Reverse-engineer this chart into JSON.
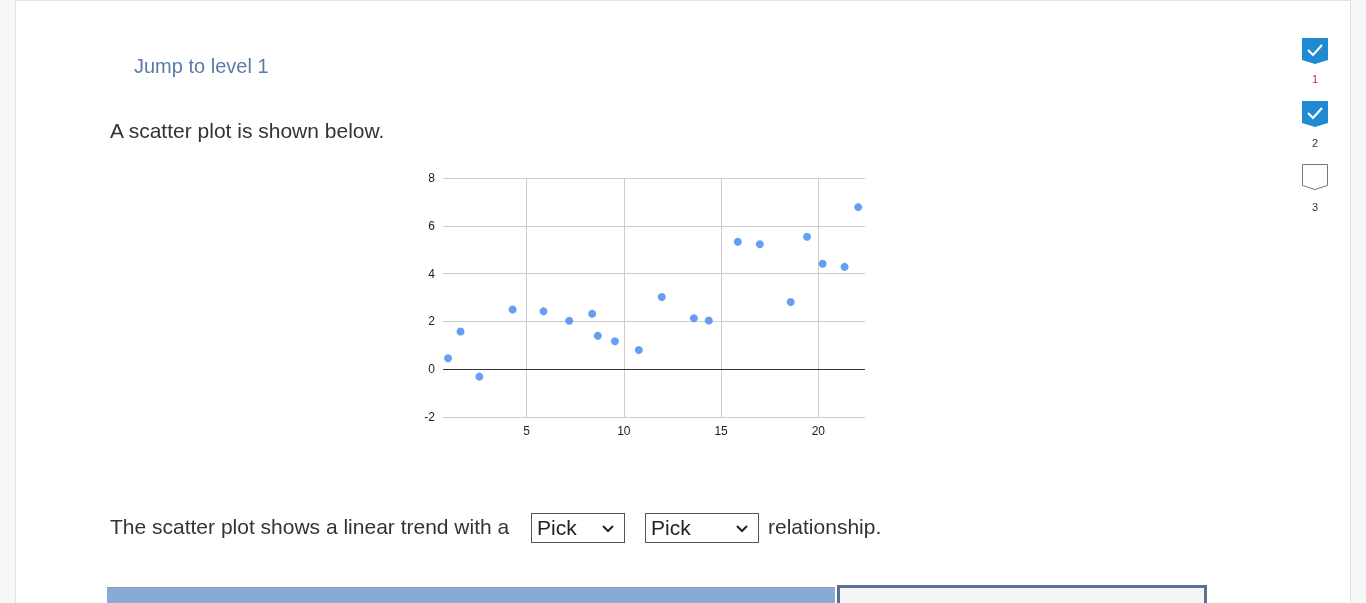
{
  "chart_data": {
    "type": "scatter",
    "x": [
      0.96,
      1.6,
      2.57,
      4.28,
      5.87,
      7.19,
      8.37,
      8.66,
      9.54,
      10.77,
      11.95,
      13.6,
      14.37,
      15.86,
      16.99,
      18.58,
      19.42,
      20.22,
      21.35,
      22.05
    ],
    "values": [
      0.46,
      1.58,
      -0.31,
      2.5,
      2.42,
      2.03,
      2.32,
      1.4,
      1.17,
      0.8,
      3.02,
      2.13,
      2.04,
      5.33,
      5.23,
      2.81,
      5.54,
      4.41,
      4.28,
      6.78
    ],
    "color": "#4285f4",
    "marker": "circle",
    "xlim": [
      0.7,
      22.4
    ],
    "xticks": [
      5,
      10,
      15,
      20
    ],
    "ylim": [
      -2,
      8
    ],
    "yticks": [
      -2,
      0,
      2,
      4,
      6,
      8
    ],
    "grid": true,
    "ref_lines": [
      {
        "axis": "y",
        "value": 0,
        "color": "#333333"
      }
    ],
    "annotations": [
      "Jump to level 1",
      "A scatter plot is shown below.",
      "The scatter plot shows a linear trend with a",
      "Pick",
      "Pick",
      "relationship.",
      "1",
      "2",
      "3"
    ]
  }
}
